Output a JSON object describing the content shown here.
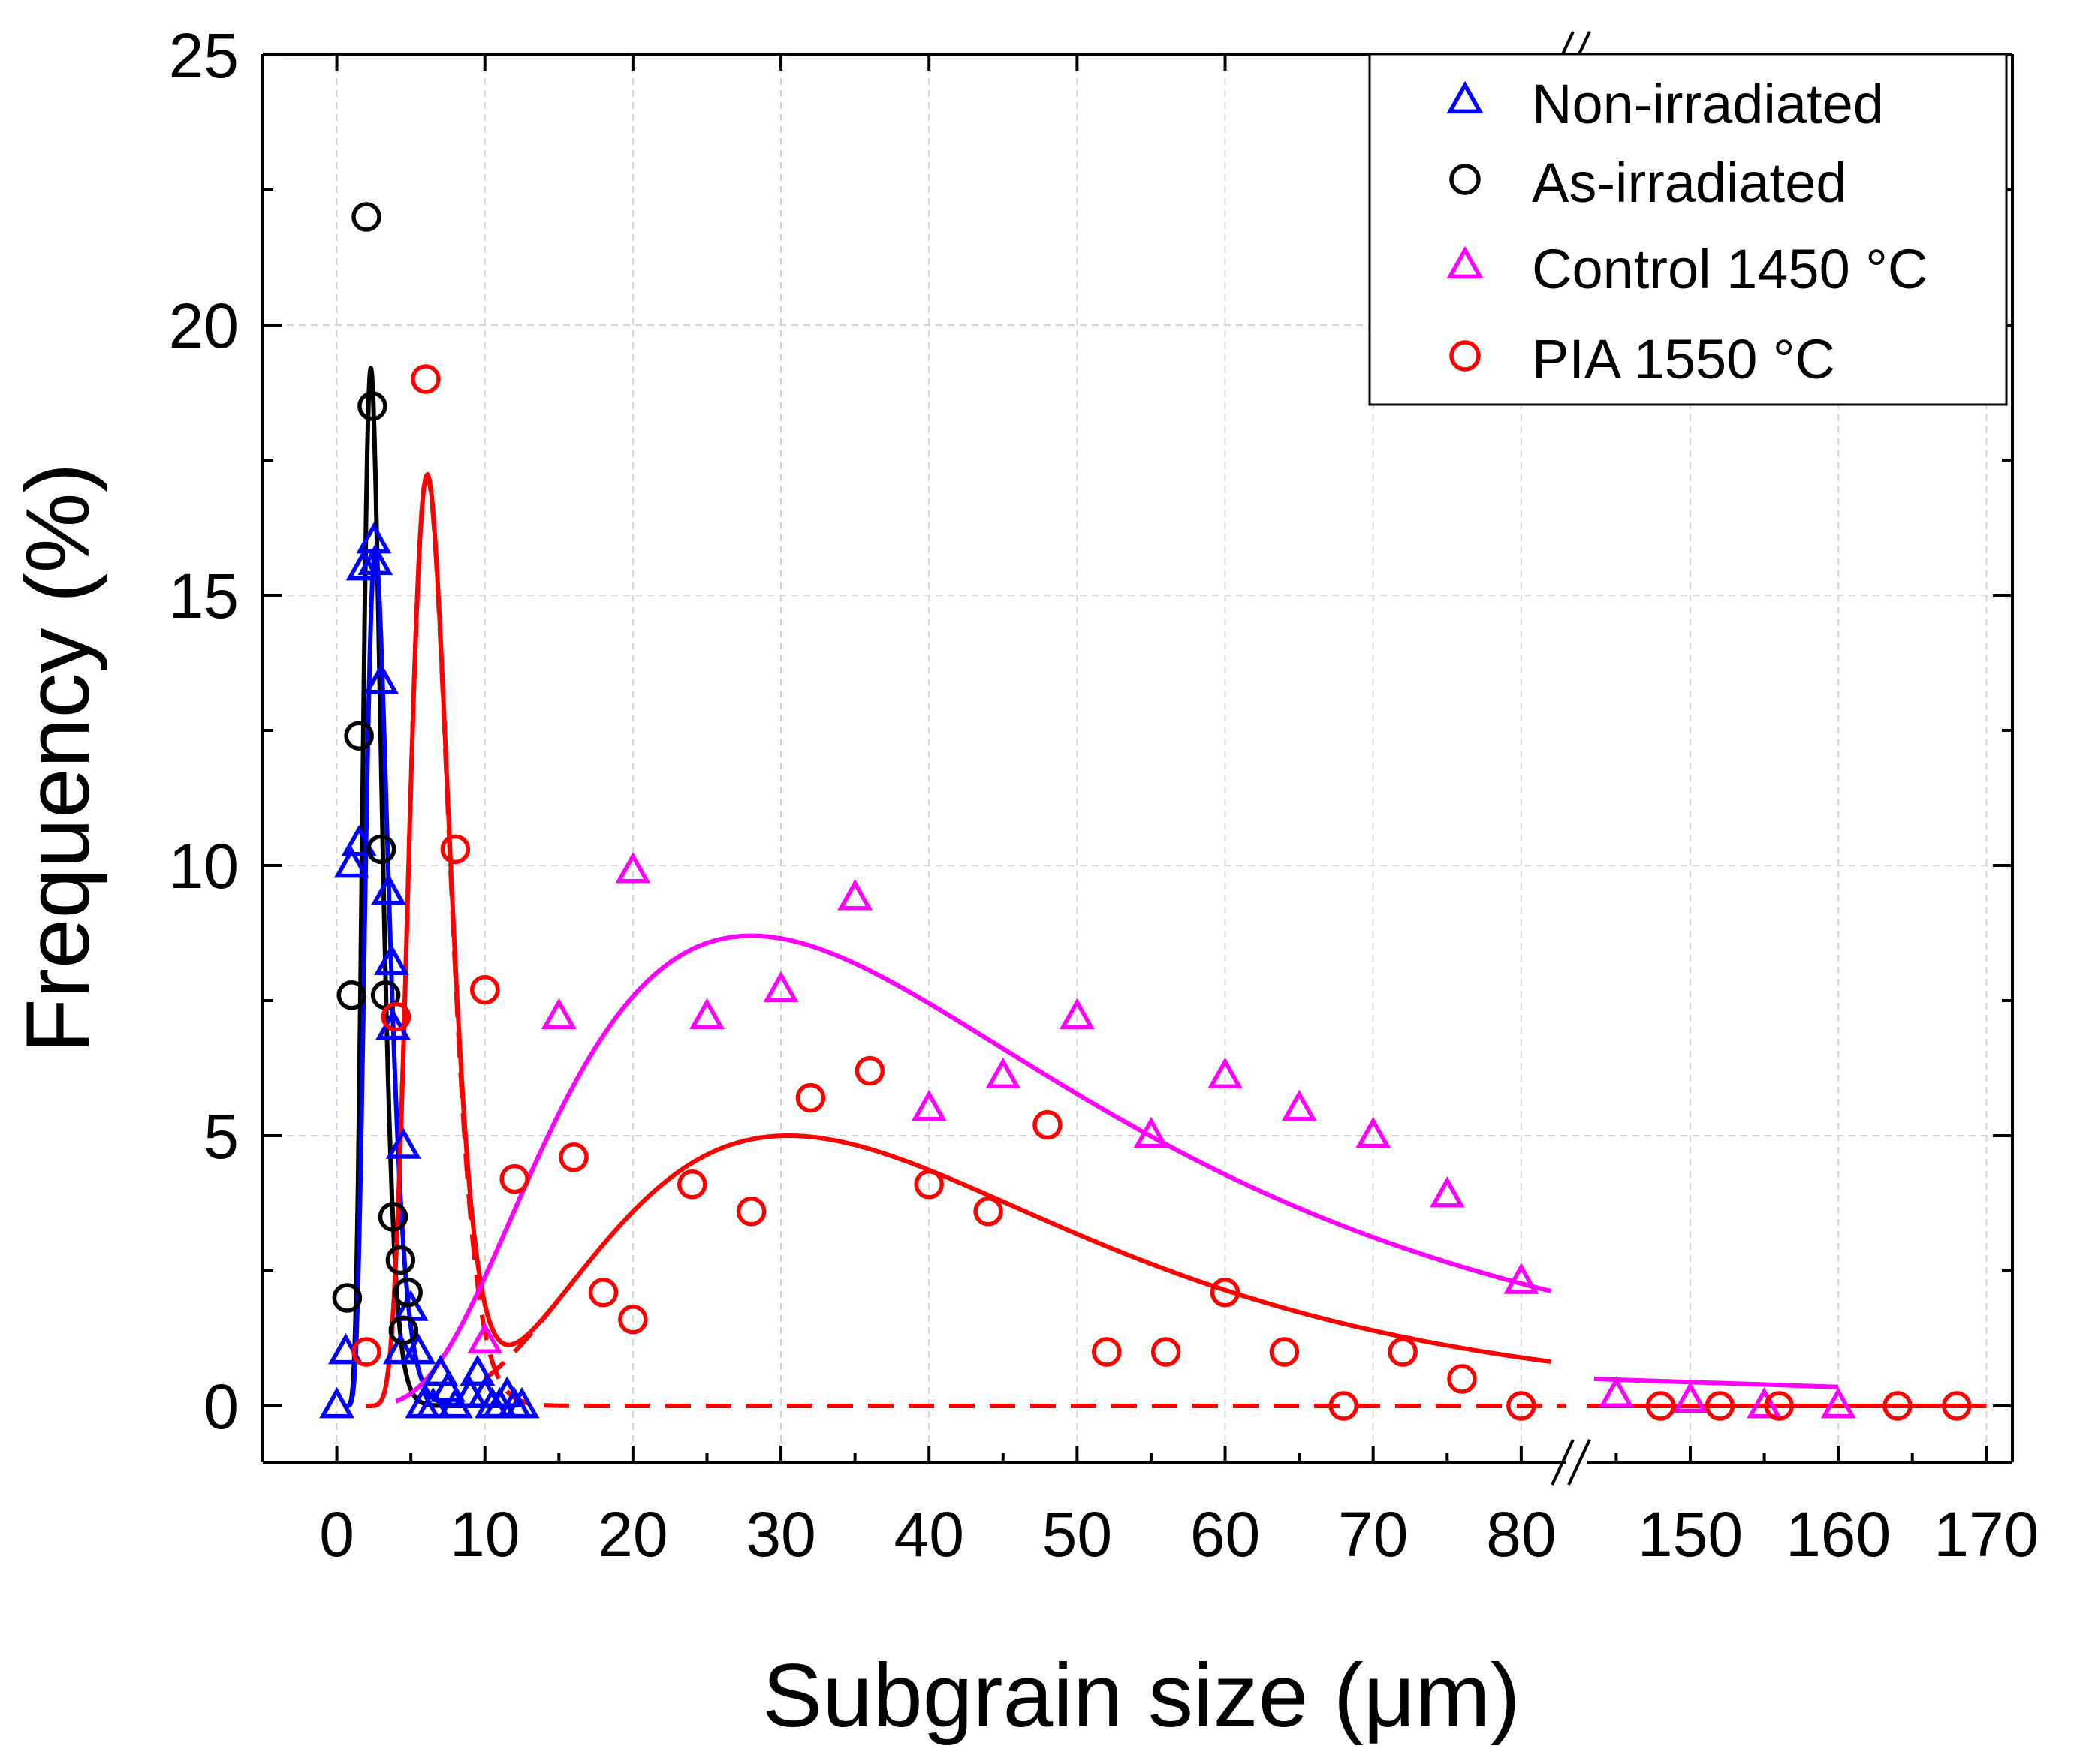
{
  "chart_data": {
    "type": "scatter",
    "title": "",
    "xlabel": "Subgrain size (μm)",
    "ylabel": "Frequency (%)",
    "ylim": [
      0,
      25
    ],
    "xlim_segments": [
      [
        -5,
        83
      ],
      [
        143,
        170
      ]
    ],
    "axis_break": "x between 83 and 143",
    "grid": true,
    "legend_position": "top-right",
    "x_ticks": [
      0,
      10,
      20,
      30,
      40,
      50,
      60,
      70,
      80,
      150,
      160,
      170
    ],
    "y_ticks": [
      0,
      5,
      10,
      15,
      20,
      25
    ],
    "series": [
      {
        "name": "Non-irradiated",
        "marker": "triangle",
        "color": "#0000ff",
        "points": [
          [
            0,
            0
          ],
          [
            0.6,
            1
          ],
          [
            1,
            10
          ],
          [
            1.5,
            10.4
          ],
          [
            1.8,
            15.5
          ],
          [
            2.5,
            16
          ],
          [
            2.6,
            15.6
          ],
          [
            3,
            13.4
          ],
          [
            3.5,
            9.5
          ],
          [
            3.7,
            8.2
          ],
          [
            3.8,
            7
          ],
          [
            4.5,
            4.8
          ],
          [
            5,
            1.8
          ],
          [
            4.3,
            1
          ],
          [
            5.5,
            1
          ],
          [
            5.8,
            0
          ],
          [
            6.5,
            0
          ],
          [
            7,
            0.6
          ],
          [
            7.5,
            0.3
          ],
          [
            8,
            0
          ],
          [
            9,
            0.2
          ],
          [
            9.5,
            0.6
          ],
          [
            10,
            0.2
          ],
          [
            10.5,
            0
          ],
          [
            11,
            0
          ],
          [
            11.5,
            0.2
          ],
          [
            12,
            0
          ],
          [
            12.5,
            0
          ]
        ]
      },
      {
        "name": "As-irradiated",
        "marker": "circle",
        "color": "#000000",
        "points": [
          [
            0.7,
            2
          ],
          [
            1,
            7.6
          ],
          [
            1.5,
            12.4
          ],
          [
            2,
            22
          ],
          [
            2.4,
            18.5
          ],
          [
            3,
            10.3
          ],
          [
            3.3,
            7.6
          ],
          [
            3.8,
            3.5
          ],
          [
            4.3,
            2.7
          ],
          [
            4.8,
            2.1
          ],
          [
            4.5,
            1.4
          ]
        ]
      },
      {
        "name": "Control 1450 °C",
        "marker": "triangle",
        "color": "#ff00ff",
        "points": [
          [
            10,
            1.2
          ],
          [
            15,
            7.2
          ],
          [
            20,
            9.9
          ],
          [
            25,
            7.2
          ],
          [
            30,
            7.7
          ],
          [
            35,
            9.4
          ],
          [
            40,
            5.5
          ],
          [
            45,
            6.1
          ],
          [
            50,
            7.2
          ],
          [
            55,
            5
          ],
          [
            60,
            6.1
          ],
          [
            65,
            5.5
          ],
          [
            70,
            5
          ],
          [
            75,
            3.9
          ],
          [
            80,
            2.3
          ],
          [
            145,
            0.2
          ],
          [
            150,
            0.1
          ],
          [
            155,
            0
          ],
          [
            160,
            0
          ]
        ]
      },
      {
        "name": "PIA 1550 °C",
        "marker": "circle",
        "color": "#ff0000",
        "points": [
          [
            2,
            1
          ],
          [
            6,
            19
          ],
          [
            8,
            10.3
          ],
          [
            10,
            7.7
          ],
          [
            4,
            7.2
          ],
          [
            12,
            4.2
          ],
          [
            16,
            4.6
          ],
          [
            18,
            2.1
          ],
          [
            20,
            1.6
          ],
          [
            24,
            4.1
          ],
          [
            28,
            3.6
          ],
          [
            32,
            5.7
          ],
          [
            36,
            6.2
          ],
          [
            40,
            4.1
          ],
          [
            44,
            3.6
          ],
          [
            48,
            5.2
          ],
          [
            52,
            1
          ],
          [
            56,
            1
          ],
          [
            60,
            2.1
          ],
          [
            64,
            1
          ],
          [
            68,
            0
          ],
          [
            72,
            1
          ],
          [
            76,
            0.5
          ],
          [
            80,
            0
          ],
          [
            148,
            0
          ],
          [
            152,
            0
          ],
          [
            156,
            0
          ],
          [
            164,
            0
          ],
          [
            168,
            0
          ]
        ]
      }
    ],
    "fits": [
      {
        "name": "As-irradiated fit",
        "color": "#000000",
        "style": "solid",
        "type": "lognormal",
        "amplitude": 19.2,
        "median": 2.3,
        "sigma": 0.27,
        "x_range": [
          0.5,
          12
        ]
      },
      {
        "name": "Non-irradiated fit",
        "color": "#0000ff",
        "style": "solid",
        "type": "lognormal",
        "amplitude": 15.8,
        "median": 2.6,
        "sigma": 0.3,
        "x_range": [
          0.5,
          12
        ]
      },
      {
        "name": "PIA 1550 °C first peak",
        "color": "#ff0000",
        "style": "dashed",
        "type": "lognormal",
        "amplitude": 17.2,
        "median": 6.1,
        "sigma": 0.22,
        "x_range": [
          2,
          170
        ]
      },
      {
        "name": "PIA 1550 °C second peak",
        "color": "#ff0000",
        "style": "dashed",
        "type": "lognormal",
        "amplitude": 5,
        "median": 30.5,
        "sigma": 0.52,
        "x_range": [
          10,
          17
        ]
      },
      {
        "name": "PIA 1550 °C total fit",
        "color": "#ff0000",
        "style": "solid",
        "type": "sum-of-lognormal",
        "x_range": [
          2,
          82
        ]
      },
      {
        "name": "Control 1450 °C fit",
        "color": "#ff00ff",
        "style": "solid",
        "type": "lognormal",
        "amplitude": 8.7,
        "median": 28,
        "sigma": 0.64,
        "x_range": [
          4,
          82
        ]
      },
      {
        "name": "Control 1450 °C tail",
        "color": "#ff00ff",
        "style": "solid",
        "type": "line",
        "points": [
          [
            143.5,
            0.5
          ],
          [
            160,
            0.35
          ]
        ]
      },
      {
        "name": "PIA 1550 °C tail",
        "color": "#ff0000",
        "style": "solid",
        "type": "line",
        "points": [
          [
            143.5,
            0
          ],
          [
            170,
            0
          ]
        ]
      }
    ]
  }
}
